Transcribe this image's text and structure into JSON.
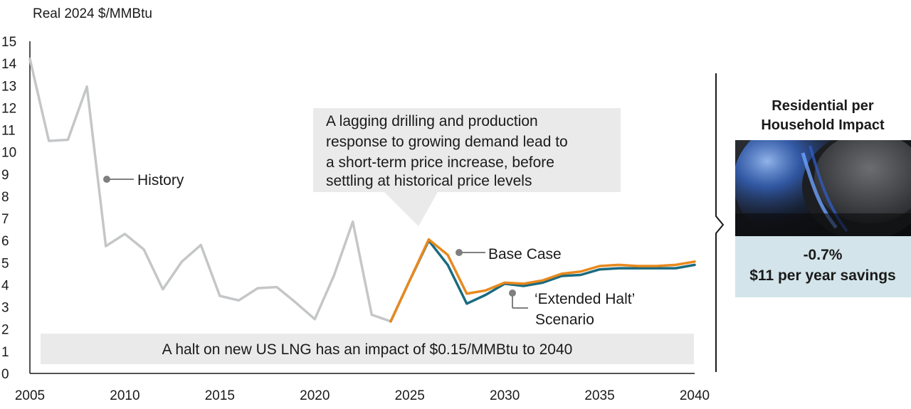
{
  "chart_data": {
    "type": "line",
    "title": "",
    "ylabel": "Real 2024 $/MMBtu",
    "xlabel": "",
    "xlim": [
      2005,
      2040
    ],
    "ylim": [
      0,
      15
    ],
    "x_ticks": [
      2005,
      2010,
      2015,
      2020,
      2025,
      2030,
      2035,
      2040
    ],
    "y_ticks": [
      0,
      1,
      2,
      3,
      4,
      5,
      6,
      7,
      8,
      9,
      10,
      11,
      12,
      13,
      14,
      15
    ],
    "grid": false,
    "series": [
      {
        "name": "History",
        "color": "#c4c6c8",
        "x": [
          2005,
          2006,
          2007,
          2008,
          2009,
          2010,
          2011,
          2012,
          2013,
          2014,
          2015,
          2016,
          2017,
          2018,
          2019,
          2020,
          2021,
          2022,
          2023,
          2024
        ],
        "values": [
          14.2,
          10.5,
          10.55,
          12.95,
          5.75,
          6.3,
          5.6,
          3.8,
          5.05,
          5.8,
          3.5,
          3.3,
          3.85,
          3.9,
          3.2,
          2.45,
          4.4,
          6.85,
          2.65,
          2.35
        ]
      },
      {
        "name": "'Extended Halt' Scenario",
        "color": "#1a6b80",
        "x": [
          2024,
          2025,
          2026,
          2027,
          2028,
          2029,
          2030,
          2031,
          2032,
          2033,
          2034,
          2035,
          2036,
          2037,
          2038,
          2039,
          2040
        ],
        "values": [
          2.35,
          4.2,
          6.0,
          4.9,
          3.15,
          3.55,
          4.05,
          3.95,
          4.1,
          4.4,
          4.45,
          4.7,
          4.75,
          4.75,
          4.75,
          4.75,
          4.9
        ]
      },
      {
        "name": "Base Case",
        "color": "#e8891e",
        "x": [
          2024,
          2025,
          2026,
          2027,
          2028,
          2029,
          2030,
          2031,
          2032,
          2033,
          2034,
          2035,
          2036,
          2037,
          2038,
          2039,
          2040
        ],
        "values": [
          2.35,
          4.2,
          6.05,
          5.35,
          3.6,
          3.75,
          4.1,
          4.05,
          4.2,
          4.5,
          4.6,
          4.85,
          4.9,
          4.85,
          4.85,
          4.9,
          5.05
        ]
      }
    ],
    "labels": {
      "history": "History",
      "base_case": "Base Case",
      "extended_halt_line1": "‘Extended Halt’",
      "extended_halt_line2": "Scenario"
    },
    "callout_lines": [
      "A lagging drilling and production",
      "response to growing demand lead to",
      "a short-term price increase, before",
      "settling at historical price levels"
    ],
    "banner": "A halt on new US LNG has an impact of $0.15/MMBtu to 2040"
  },
  "impact_panel": {
    "title_line1": "Residential per",
    "title_line2": "Household Impact",
    "image_description": "gas-stove-burner-flame",
    "percent": "-0.7%",
    "savings": "$11 per year savings",
    "box_color": "#d3e4ea"
  }
}
